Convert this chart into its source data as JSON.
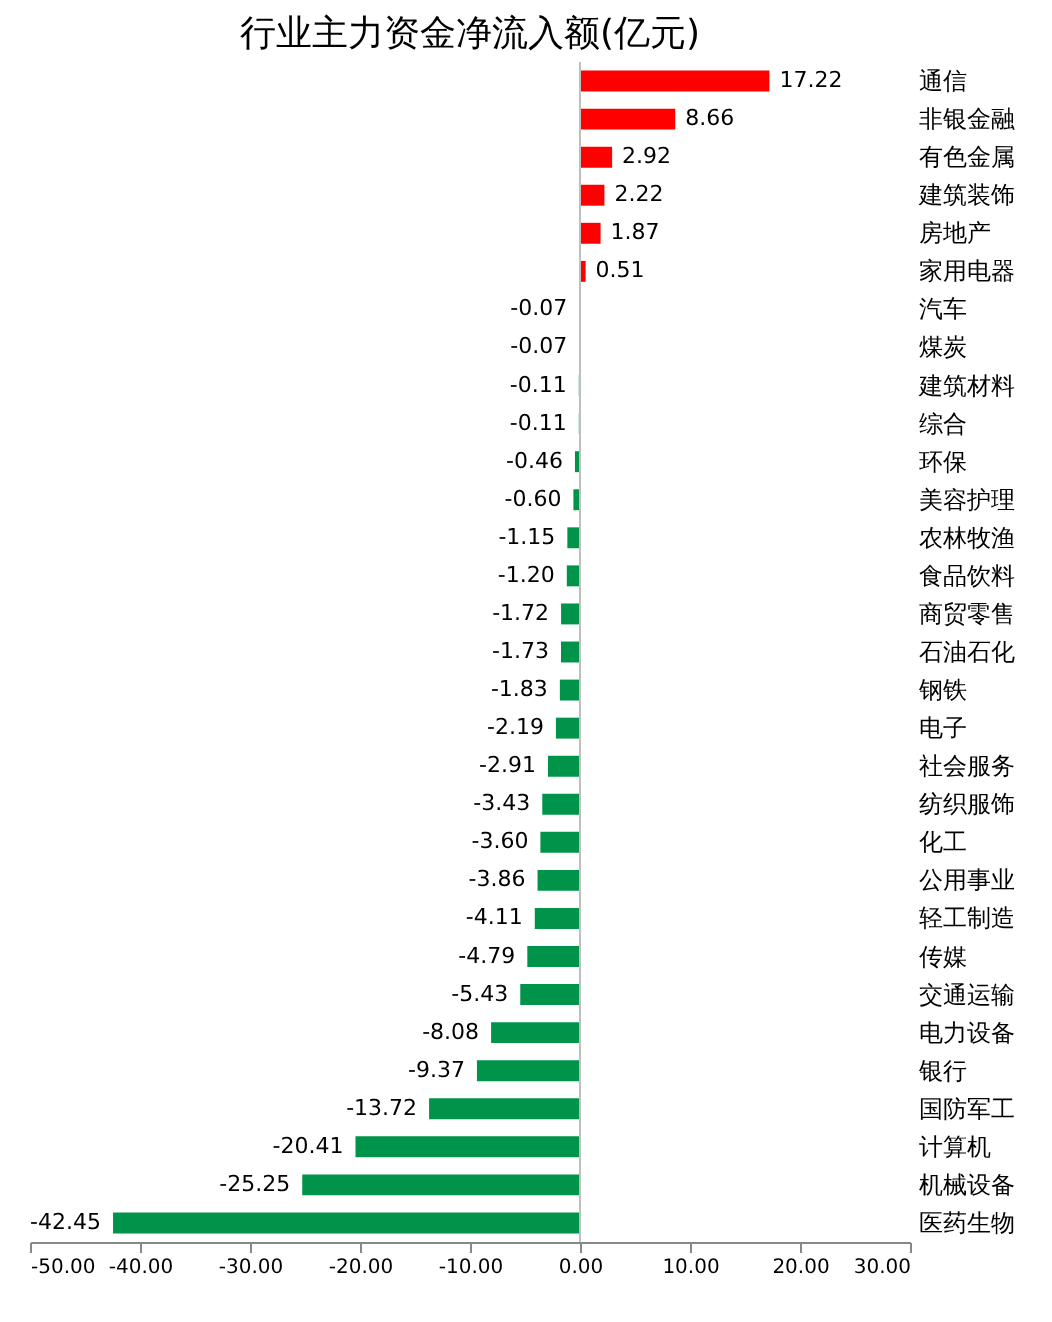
{
  "chart_data": {
    "type": "bar",
    "orientation": "horizontal",
    "title": "行业主力资金净流入额(亿元)",
    "categories": [
      "通信",
      "非银金融",
      "有色金属",
      "建筑装饰",
      "房地产",
      "家用电器",
      "汽车",
      "煤炭",
      "建筑材料",
      "综合",
      "环保",
      "美容护理",
      "农林牧渔",
      "食品饮料",
      "商贸零售",
      "石油石化",
      "钢铁",
      "电子",
      "社会服务",
      "纺织服饰",
      "化工",
      "公用事业",
      "轻工制造",
      "传媒",
      "交通运输",
      "电力设备",
      "银行",
      "国防军工",
      "计算机",
      "机械设备",
      "医药生物"
    ],
    "values": [
      17.22,
      8.66,
      2.92,
      2.22,
      1.87,
      0.51,
      -0.07,
      -0.07,
      -0.11,
      -0.11,
      -0.46,
      -0.6,
      -1.15,
      -1.2,
      -1.72,
      -1.73,
      -1.83,
      -2.19,
      -2.91,
      -3.43,
      -3.6,
      -3.86,
      -4.11,
      -4.79,
      -5.43,
      -8.08,
      -9.37,
      -13.72,
      -20.41,
      -25.25,
      -42.45
    ],
    "value_labels": [
      "17.22",
      "8.66",
      "2.92",
      "2.22",
      "1.87",
      "0.51",
      "-0.07",
      "-0.07",
      "-0.11",
      "-0.11",
      "-0.46",
      "-0.60",
      "-1.15",
      "-1.20",
      "-1.72",
      "-1.73",
      "-1.83",
      "-2.19",
      "-2.91",
      "-3.43",
      "-3.60",
      "-3.86",
      "-4.11",
      "-4.79",
      "-5.43",
      "-8.08",
      "-9.37",
      "-13.72",
      "-20.41",
      "-25.25",
      "-42.45"
    ],
    "colors": [
      "#ff0000",
      "#ff0000",
      "#ff0000",
      "#ff0000",
      "#ff0000",
      "#ff0000",
      "#00934a",
      "#00934a",
      "#00934a",
      "#00934a",
      "#00934a",
      "#00934a",
      "#00934a",
      "#00934a",
      "#00934a",
      "#00934a",
      "#00934a",
      "#00934a",
      "#00934a",
      "#00934a",
      "#00934a",
      "#00934a",
      "#00934a",
      "#00934a",
      "#00934a",
      "#00934a",
      "#00934a",
      "#00934a",
      "#00934a",
      "#00934a",
      "#00934a"
    ],
    "xlim": [
      -50,
      30
    ],
    "xticks": [
      {
        "value": -50,
        "label": "-50.00"
      },
      {
        "value": -40,
        "label": "-40.00"
      },
      {
        "value": -30,
        "label": "-30.00"
      },
      {
        "value": -20,
        "label": "-20.00"
      },
      {
        "value": -10,
        "label": "-10.00"
      },
      {
        "value": 0,
        "label": "0.00"
      },
      {
        "value": 10,
        "label": "10.00"
      },
      {
        "value": 20,
        "label": "20.00"
      },
      {
        "value": 30,
        "label": "30.00"
      }
    ],
    "ref_lines": [
      {
        "axis": "x",
        "value": 0,
        "color": "#bfbfbf"
      }
    ],
    "grid": false
  }
}
